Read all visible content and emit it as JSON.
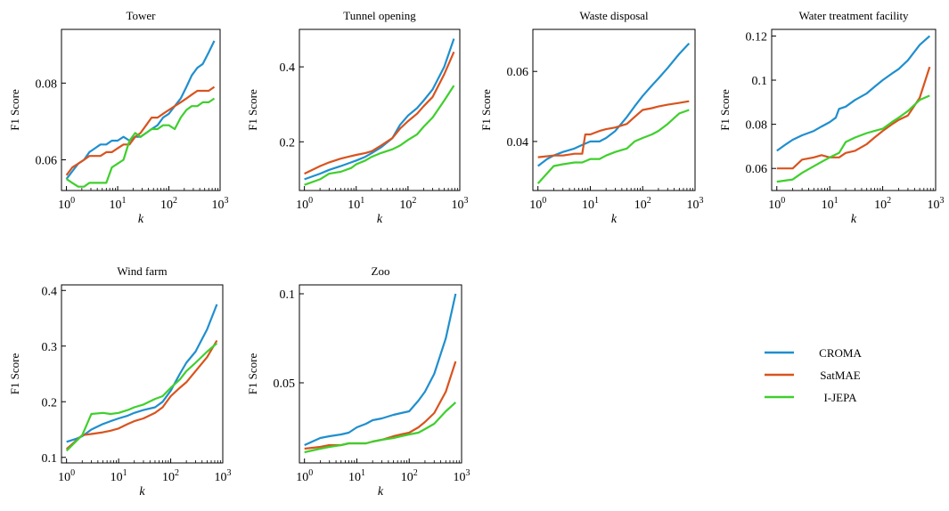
{
  "colors": {
    "croma": "#1f8fce",
    "satmae": "#d9531e",
    "ijepa": "#3fcf2d"
  },
  "legend": [
    {
      "name": "CROMA",
      "color": "#1f8fce"
    },
    {
      "name": "SatMAE",
      "color": "#d9531e"
    },
    {
      "name": "I-JEPA",
      "color": "#3fcf2d"
    }
  ],
  "chart_data": [
    {
      "type": "line",
      "title": "Tower",
      "xlabel": "k",
      "ylabel": "F1 Score",
      "xscale": "log",
      "xlim": [
        0.8,
        1000
      ],
      "ylim": [
        0.052,
        0.094
      ],
      "yticks": [
        0.06,
        0.08
      ],
      "ytick_labels": [
        "0.06",
        "0.08"
      ],
      "series": [
        {
          "name": "CROMA",
          "x": [
            1,
            1.3,
            1.7,
            2.2,
            2.8,
            3.6,
            4.6,
            6,
            7.7,
            10,
            13,
            17,
            22,
            28,
            36,
            46,
            60,
            77,
            100,
            130,
            170,
            220,
            280,
            360,
            460,
            600,
            770
          ],
          "y": [
            0.055,
            0.057,
            0.059,
            0.06,
            0.062,
            0.063,
            0.064,
            0.064,
            0.065,
            0.065,
            0.066,
            0.065,
            0.066,
            0.066,
            0.067,
            0.068,
            0.069,
            0.071,
            0.072,
            0.074,
            0.076,
            0.079,
            0.082,
            0.084,
            0.085,
            0.088,
            0.091
          ]
        },
        {
          "name": "SatMAE",
          "x": [
            1,
            1.3,
            1.7,
            2.2,
            2.8,
            3.6,
            4.6,
            6,
            7.7,
            10,
            13,
            17,
            22,
            28,
            36,
            46,
            60,
            77,
            100,
            130,
            170,
            220,
            280,
            360,
            460,
            600,
            770
          ],
          "y": [
            0.056,
            0.058,
            0.059,
            0.06,
            0.061,
            0.061,
            0.061,
            0.062,
            0.062,
            0.063,
            0.064,
            0.064,
            0.066,
            0.067,
            0.069,
            0.071,
            0.071,
            0.072,
            0.073,
            0.074,
            0.075,
            0.076,
            0.077,
            0.078,
            0.078,
            0.078,
            0.079
          ]
        },
        {
          "name": "I-JEPA",
          "x": [
            1,
            1.3,
            1.7,
            2.2,
            2.8,
            3.6,
            4.6,
            6,
            7.7,
            10,
            13,
            17,
            22,
            28,
            36,
            46,
            60,
            77,
            100,
            130,
            170,
            220,
            280,
            360,
            460,
            600,
            770
          ],
          "y": [
            0.055,
            0.054,
            0.053,
            0.053,
            0.054,
            0.054,
            0.054,
            0.054,
            0.058,
            0.059,
            0.06,
            0.065,
            0.067,
            0.066,
            0.067,
            0.068,
            0.068,
            0.069,
            0.069,
            0.068,
            0.071,
            0.073,
            0.074,
            0.074,
            0.075,
            0.075,
            0.076
          ]
        }
      ]
    },
    {
      "type": "line",
      "title": "Tunnel opening",
      "xlabel": "k",
      "ylabel": "F1 Score",
      "xscale": "log",
      "xlim": [
        0.8,
        1000
      ],
      "ylim": [
        0.07,
        0.5
      ],
      "yticks": [
        0.2,
        0.4
      ],
      "ytick_labels": [
        "0.2",
        "0.4"
      ],
      "series": [
        {
          "name": "CROMA",
          "x": [
            1,
            2,
            3,
            5,
            8,
            10,
            15,
            20,
            30,
            50,
            70,
            100,
            150,
            200,
            300,
            500,
            770
          ],
          "y": [
            0.1,
            0.115,
            0.125,
            0.135,
            0.145,
            0.15,
            0.16,
            0.17,
            0.185,
            0.21,
            0.245,
            0.27,
            0.29,
            0.31,
            0.34,
            0.4,
            0.475
          ]
        },
        {
          "name": "SatMAE",
          "x": [
            1,
            2,
            3,
            5,
            8,
            10,
            15,
            20,
            30,
            50,
            70,
            100,
            150,
            200,
            300,
            500,
            770
          ],
          "y": [
            0.115,
            0.135,
            0.145,
            0.155,
            0.162,
            0.165,
            0.17,
            0.175,
            0.19,
            0.21,
            0.235,
            0.255,
            0.275,
            0.295,
            0.32,
            0.38,
            0.44
          ]
        },
        {
          "name": "I-JEPA",
          "x": [
            1,
            2,
            3,
            5,
            8,
            10,
            15,
            20,
            30,
            50,
            70,
            100,
            150,
            200,
            300,
            500,
            770
          ],
          "y": [
            0.085,
            0.1,
            0.115,
            0.12,
            0.13,
            0.14,
            0.15,
            0.16,
            0.17,
            0.18,
            0.19,
            0.205,
            0.22,
            0.24,
            0.265,
            0.31,
            0.35
          ]
        }
      ]
    },
    {
      "type": "line",
      "title": "Waste disposal",
      "xlabel": "k",
      "ylabel": "F1 Score",
      "xscale": "log",
      "xlim": [
        0.8,
        1000
      ],
      "ylim": [
        0.026,
        0.072
      ],
      "yticks": [
        0.04,
        0.06
      ],
      "ytick_labels": [
        "0.04",
        "0.06"
      ],
      "series": [
        {
          "name": "CROMA",
          "x": [
            1,
            1.5,
            2,
            3,
            5,
            7,
            10,
            15,
            20,
            30,
            50,
            70,
            100,
            150,
            200,
            300,
            500,
            770
          ],
          "y": [
            0.033,
            0.035,
            0.036,
            0.037,
            0.038,
            0.039,
            0.04,
            0.04,
            0.041,
            0.043,
            0.047,
            0.05,
            0.053,
            0.056,
            0.058,
            0.061,
            0.065,
            0.068
          ]
        },
        {
          "name": "SatMAE",
          "x": [
            1,
            2,
            3,
            5,
            7,
            8,
            10,
            15,
            20,
            30,
            50,
            70,
            100,
            150,
            200,
            300,
            500,
            770
          ],
          "y": [
            0.0355,
            0.036,
            0.036,
            0.0365,
            0.0365,
            0.042,
            0.042,
            0.043,
            0.0435,
            0.044,
            0.045,
            0.047,
            0.049,
            0.0495,
            0.05,
            0.0505,
            0.051,
            0.0515
          ]
        },
        {
          "name": "I-JEPA",
          "x": [
            1,
            2,
            3,
            5,
            7,
            10,
            15,
            20,
            30,
            50,
            70,
            100,
            150,
            200,
            300,
            500,
            770
          ],
          "y": [
            0.028,
            0.033,
            0.0335,
            0.034,
            0.034,
            0.035,
            0.035,
            0.036,
            0.037,
            0.038,
            0.04,
            0.041,
            0.042,
            0.043,
            0.045,
            0.048,
            0.049
          ]
        }
      ]
    },
    {
      "type": "line",
      "title": "Water treatment facility",
      "xlabel": "k",
      "ylabel": "F1 Score",
      "xscale": "log",
      "xlim": [
        0.8,
        1000
      ],
      "ylim": [
        0.05,
        0.123
      ],
      "yticks": [
        0.06,
        0.08,
        0.1,
        0.12
      ],
      "ytick_labels": [
        "0.06",
        "0.08",
        "0.1",
        "0.12"
      ],
      "series": [
        {
          "name": "CROMA",
          "x": [
            1,
            1.5,
            2,
            3,
            5,
            7,
            10,
            13,
            15,
            20,
            30,
            50,
            70,
            100,
            150,
            200,
            300,
            500,
            770
          ],
          "y": [
            0.068,
            0.071,
            0.073,
            0.075,
            0.077,
            0.079,
            0.081,
            0.083,
            0.087,
            0.088,
            0.091,
            0.094,
            0.097,
            0.1,
            0.103,
            0.105,
            0.109,
            0.116,
            0.12
          ]
        },
        {
          "name": "SatMAE",
          "x": [
            1,
            2,
            3,
            5,
            7,
            10,
            15,
            20,
            30,
            50,
            70,
            100,
            150,
            200,
            300,
            500,
            770
          ],
          "y": [
            0.06,
            0.06,
            0.064,
            0.065,
            0.066,
            0.065,
            0.065,
            0.067,
            0.068,
            0.071,
            0.074,
            0.077,
            0.08,
            0.082,
            0.084,
            0.092,
            0.106
          ]
        },
        {
          "name": "I-JEPA",
          "x": [
            1,
            2,
            3,
            5,
            7,
            10,
            15,
            20,
            30,
            50,
            70,
            100,
            150,
            200,
            300,
            500,
            770
          ],
          "y": [
            0.054,
            0.055,
            0.058,
            0.061,
            0.063,
            0.065,
            0.067,
            0.072,
            0.074,
            0.076,
            0.077,
            0.078,
            0.081,
            0.083,
            0.086,
            0.091,
            0.093
          ]
        }
      ]
    },
    {
      "type": "line",
      "title": "Wind farm",
      "xlabel": "k",
      "ylabel": "F1 Score",
      "xscale": "log",
      "xlim": [
        0.8,
        1000
      ],
      "ylim": [
        0.09,
        0.41
      ],
      "yticks": [
        0.1,
        0.2,
        0.3,
        0.4
      ],
      "ytick_labels": [
        "0.1",
        "0.2",
        "0.3",
        "0.4"
      ],
      "series": [
        {
          "name": "CROMA",
          "x": [
            1,
            1.5,
            2,
            3,
            5,
            7,
            10,
            15,
            20,
            30,
            50,
            70,
            100,
            150,
            200,
            300,
            500,
            770
          ],
          "y": [
            0.128,
            0.133,
            0.138,
            0.15,
            0.16,
            0.165,
            0.17,
            0.175,
            0.18,
            0.185,
            0.19,
            0.2,
            0.22,
            0.25,
            0.27,
            0.29,
            0.33,
            0.375
          ]
        },
        {
          "name": "SatMAE",
          "x": [
            1,
            2,
            3,
            5,
            7,
            10,
            15,
            20,
            30,
            50,
            70,
            100,
            150,
            200,
            300,
            500,
            770
          ],
          "y": [
            0.115,
            0.14,
            0.142,
            0.145,
            0.148,
            0.152,
            0.16,
            0.165,
            0.17,
            0.18,
            0.19,
            0.21,
            0.225,
            0.235,
            0.255,
            0.28,
            0.31
          ]
        },
        {
          "name": "I-JEPA",
          "x": [
            1,
            2,
            3,
            5,
            7,
            10,
            15,
            20,
            30,
            50,
            70,
            100,
            150,
            200,
            300,
            500,
            770
          ],
          "y": [
            0.112,
            0.14,
            0.178,
            0.18,
            0.178,
            0.18,
            0.185,
            0.19,
            0.195,
            0.205,
            0.21,
            0.225,
            0.24,
            0.255,
            0.27,
            0.29,
            0.305
          ]
        }
      ]
    },
    {
      "type": "line",
      "title": "Zoo",
      "xlabel": "k",
      "ylabel": "F1 Score",
      "xscale": "log",
      "xlim": [
        0.8,
        1000
      ],
      "ylim": [
        0.005,
        0.105
      ],
      "yticks": [
        0.05,
        0.1
      ],
      "ytick_labels": [
        "0.05",
        "0.1"
      ],
      "series": [
        {
          "name": "CROMA",
          "x": [
            1,
            2,
            3,
            5,
            7,
            10,
            15,
            20,
            30,
            50,
            70,
            100,
            150,
            200,
            300,
            500,
            770
          ],
          "y": [
            0.015,
            0.019,
            0.02,
            0.021,
            0.022,
            0.025,
            0.027,
            0.029,
            0.03,
            0.032,
            0.033,
            0.034,
            0.04,
            0.045,
            0.055,
            0.075,
            0.1
          ]
        },
        {
          "name": "SatMAE",
          "x": [
            1,
            2,
            3,
            5,
            7,
            10,
            15,
            20,
            30,
            50,
            70,
            100,
            150,
            200,
            300,
            500,
            770
          ],
          "y": [
            0.013,
            0.014,
            0.015,
            0.015,
            0.016,
            0.016,
            0.016,
            0.017,
            0.018,
            0.02,
            0.021,
            0.022,
            0.025,
            0.028,
            0.033,
            0.045,
            0.062
          ]
        },
        {
          "name": "I-JEPA",
          "x": [
            1,
            2,
            3,
            5,
            7,
            10,
            15,
            20,
            30,
            50,
            70,
            100,
            150,
            200,
            300,
            500,
            770
          ],
          "y": [
            0.011,
            0.013,
            0.014,
            0.015,
            0.016,
            0.016,
            0.016,
            0.017,
            0.018,
            0.019,
            0.02,
            0.021,
            0.022,
            0.024,
            0.027,
            0.034,
            0.039
          ]
        }
      ]
    }
  ]
}
